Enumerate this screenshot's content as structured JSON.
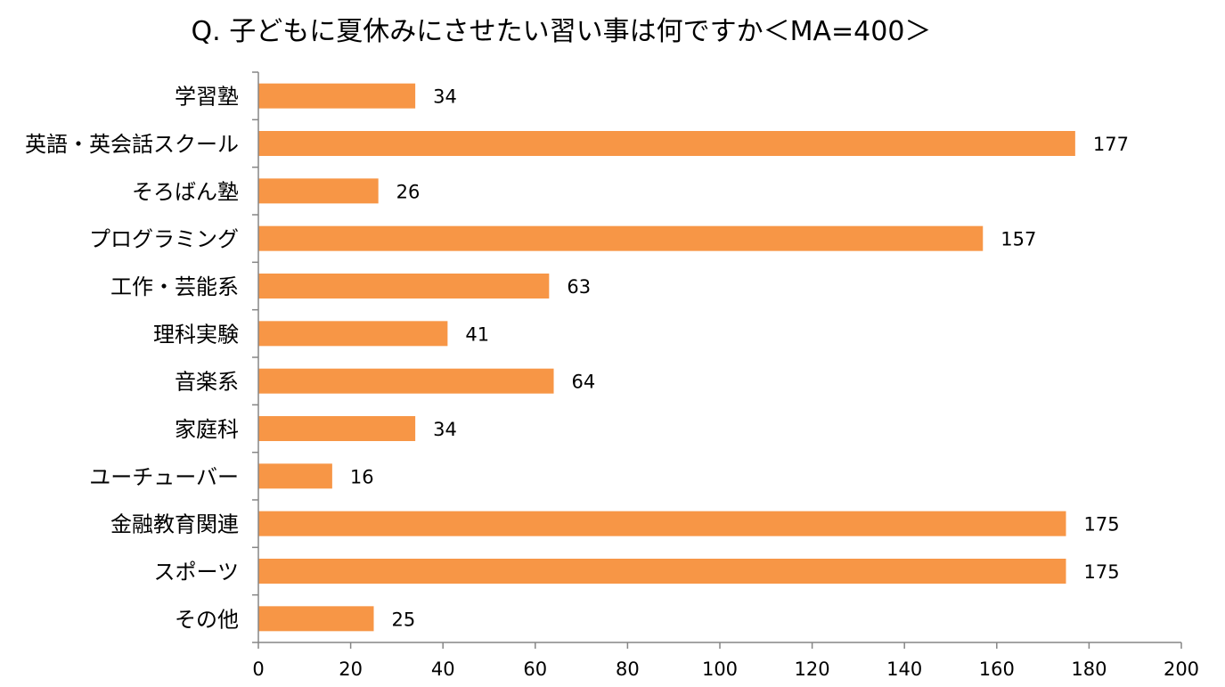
{
  "chart_data": {
    "type": "bar",
    "orientation": "horizontal",
    "title": "Q. 子どもに夏休みにさせたい習い事は何ですか＜MA=400＞",
    "categories": [
      "学習塾",
      "英語・英会話スクール",
      "そろばん塾",
      "プログラミング",
      "工作・芸能系",
      "理科実験",
      "音楽系",
      "家庭科",
      "ユーチューバー",
      "金融教育関連",
      "スポーツ",
      "その他"
    ],
    "values": [
      34,
      177,
      26,
      157,
      63,
      41,
      64,
      34,
      16,
      175,
      175,
      25
    ],
    "value_labels": [
      "34",
      "177",
      "26",
      "157",
      "63",
      "41",
      "64",
      "34",
      "16",
      "175",
      "175",
      "25"
    ],
    "xlim": [
      0,
      200
    ],
    "x_ticks": [
      0,
      20,
      40,
      60,
      80,
      100,
      120,
      140,
      160,
      180,
      200
    ],
    "x_tick_labels": [
      "0",
      "20",
      "40",
      "60",
      "80",
      "100",
      "120",
      "140",
      "160",
      "180",
      "200"
    ],
    "bar_color": "#F79646",
    "axis_color": "#868686",
    "grid": false,
    "legend": "none"
  }
}
